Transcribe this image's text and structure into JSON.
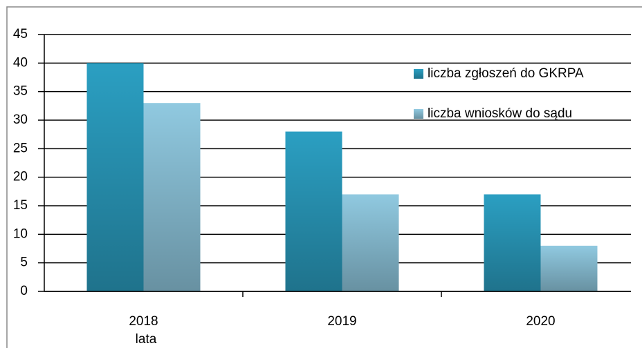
{
  "chart_data": {
    "type": "bar",
    "categories": [
      "2018",
      "2019",
      "2020"
    ],
    "x_label": "lata",
    "series": [
      {
        "name": "liczba zgłoszeń do GKRPA",
        "color": "#2b9fc2",
        "values": [
          40,
          28,
          17
        ]
      },
      {
        "name": "liczba wniosków do sądu",
        "color": "#90c9e0",
        "values": [
          33,
          17,
          8
        ]
      }
    ],
    "ylim": [
      0,
      45
    ],
    "yticks": [
      0,
      5,
      10,
      15,
      20,
      25,
      30,
      35,
      40,
      45
    ],
    "grid": true,
    "legend": "upper right"
  }
}
